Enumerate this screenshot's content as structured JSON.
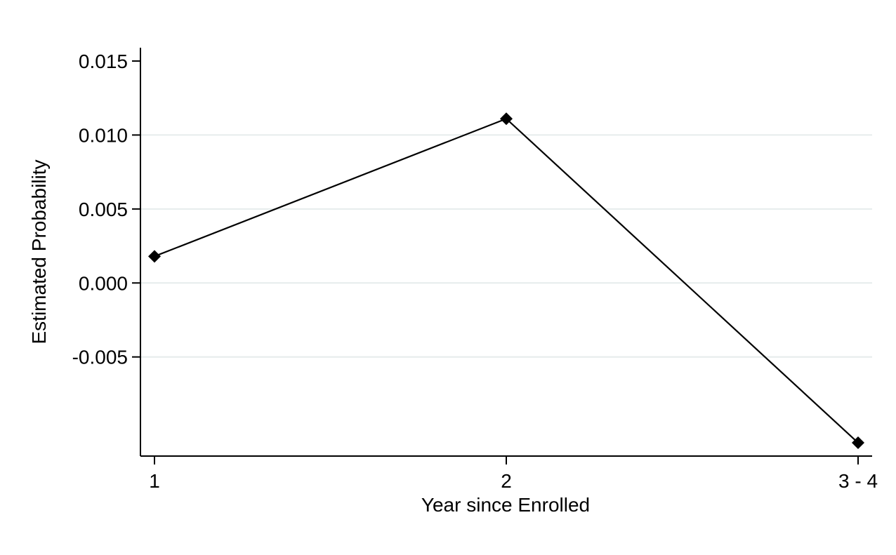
{
  "chart_data": {
    "type": "line",
    "title": "",
    "xlabel": "Year since Enrolled",
    "ylabel": "Estimated Probability",
    "categories": [
      "1",
      "2",
      "3 - 4"
    ],
    "series": [
      {
        "values": [
          0.0018,
          0.0111,
          -0.0108
        ]
      }
    ],
    "ylim": [
      -0.0117,
      0.0159
    ],
    "yticks": [
      0.015,
      0.01,
      0.005,
      0.0,
      -0.005
    ],
    "ytick_labels": [
      "0.015",
      "0.010",
      "0.005",
      "0.000",
      "-0.005"
    ],
    "grid": true,
    "marker": "diamond",
    "colors": {
      "line": "#000000",
      "grid": "#e6ecec",
      "background": "#ffffff"
    }
  }
}
